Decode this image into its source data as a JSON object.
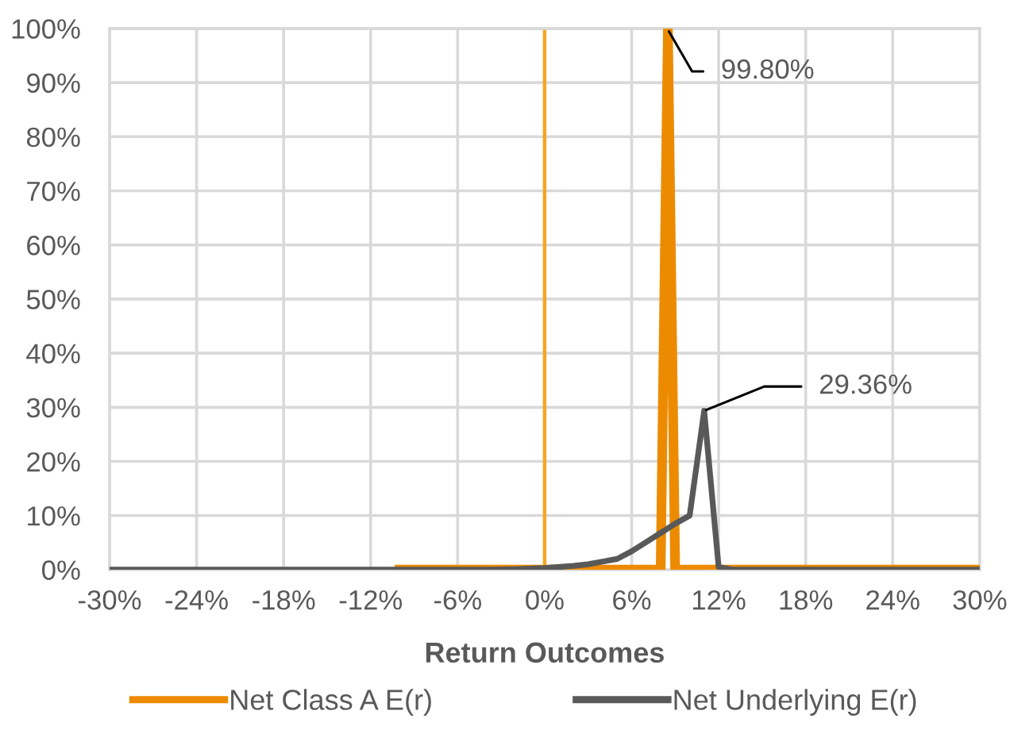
{
  "chart_data": {
    "type": "line",
    "xlabel": "Return Outcomes",
    "series": [
      {
        "name": "Net Class A E(r)",
        "color": "#ed8b00",
        "x": [
          -10,
          -8,
          -6,
          -4,
          -2,
          0,
          2,
          4,
          6,
          8,
          8.5,
          9,
          10,
          12,
          14,
          16,
          18,
          20,
          22,
          24,
          26,
          28,
          30
        ],
        "values": [
          0,
          0,
          0,
          0,
          0,
          0,
          0,
          0,
          0,
          0,
          99.8,
          0,
          0,
          0,
          0,
          0,
          0,
          0,
          0,
          0,
          0,
          0,
          0
        ]
      },
      {
        "name": "Net Underlying E(r)",
        "color": "#595959",
        "x": [
          -30,
          -26,
          -22,
          -18,
          -14,
          -10,
          -6,
          -4,
          -2,
          0,
          2,
          3,
          4,
          5,
          6,
          7,
          8,
          9,
          10,
          11,
          12,
          13,
          14,
          18,
          22,
          26,
          30
        ],
        "values": [
          0,
          0,
          0,
          0,
          0,
          0,
          0,
          0,
          0.1,
          0.3,
          0.7,
          1.0,
          1.5,
          2.0,
          3.4,
          5.1,
          6.8,
          8.5,
          10,
          29.36,
          0.5,
          0,
          0,
          0,
          0,
          0,
          0
        ]
      }
    ],
    "ref_lines": [
      {
        "axis": "x",
        "value": 0,
        "color": "#f5a623"
      }
    ],
    "annotations": [
      {
        "text": "99.80%",
        "x": 8.5,
        "y": 99.8
      },
      {
        "text": "29.36%",
        "x": 11,
        "y": 29.36
      }
    ],
    "xlim": [
      -30,
      30
    ],
    "xticks": [
      {
        "value": -30,
        "label": "-30%"
      },
      {
        "value": -24,
        "label": "-24%"
      },
      {
        "value": -18,
        "label": "-18%"
      },
      {
        "value": -12,
        "label": "-12%"
      },
      {
        "value": -6,
        "label": "-6%"
      },
      {
        "value": 0,
        "label": "0%"
      },
      {
        "value": 6,
        "label": "6%"
      },
      {
        "value": 12,
        "label": "12%"
      },
      {
        "value": 18,
        "label": "18%"
      },
      {
        "value": 24,
        "label": "24%"
      },
      {
        "value": 30,
        "label": "30%"
      }
    ],
    "ylim": [
      0,
      100
    ],
    "yticks": [
      {
        "value": 0,
        "label": "0%"
      },
      {
        "value": 10,
        "label": "10%"
      },
      {
        "value": 20,
        "label": "20%"
      },
      {
        "value": 30,
        "label": "30%"
      },
      {
        "value": 40,
        "label": "40%"
      },
      {
        "value": 50,
        "label": "50%"
      },
      {
        "value": 60,
        "label": "60%"
      },
      {
        "value": 70,
        "label": "70%"
      },
      {
        "value": 80,
        "label": "80%"
      },
      {
        "value": 90,
        "label": "90%"
      },
      {
        "value": 100,
        "label": "100%"
      }
    ],
    "grid": true,
    "legend": "bottom",
    "marker": "none",
    "line_style": "solid"
  }
}
